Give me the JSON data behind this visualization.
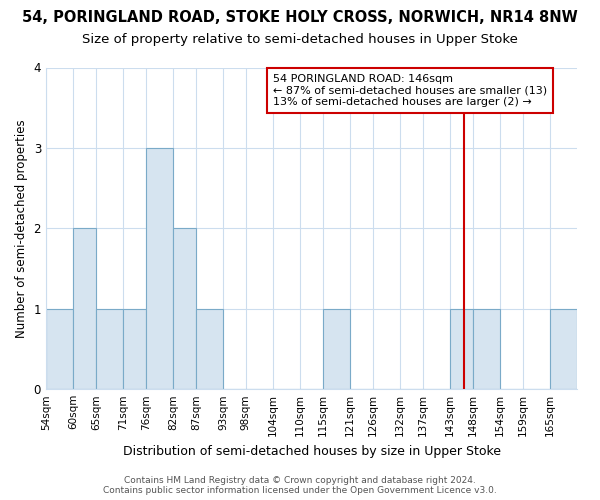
{
  "title1": "54, PORINGLAND ROAD, STOKE HOLY CROSS, NORWICH, NR14 8NW",
  "title2": "Size of property relative to semi-detached houses in Upper Stoke",
  "xlabel": "Distribution of semi-detached houses by size in Upper Stoke",
  "ylabel": "Number of semi-detached properties",
  "bins": [
    "54sqm",
    "60sqm",
    "65sqm",
    "71sqm",
    "76sqm",
    "82sqm",
    "87sqm",
    "93sqm",
    "98sqm",
    "104sqm",
    "110sqm",
    "115sqm",
    "121sqm",
    "126sqm",
    "132sqm",
    "137sqm",
    "143sqm",
    "148sqm",
    "154sqm",
    "159sqm",
    "165sqm"
  ],
  "bin_edges": [
    54,
    60,
    65,
    71,
    76,
    82,
    87,
    93,
    98,
    104,
    110,
    115,
    121,
    126,
    132,
    137,
    143,
    148,
    154,
    159,
    165,
    171
  ],
  "heights": [
    1,
    2,
    1,
    1,
    3,
    2,
    1,
    0,
    0,
    0,
    0,
    1,
    0,
    0,
    0,
    0,
    1,
    1,
    0,
    0,
    1
  ],
  "bar_color": "#d6e4f0",
  "bar_edge_color": "#7aaac8",
  "vline_x": 146,
  "vline_color": "#cc0000",
  "annotation_title": "54 PORINGLAND ROAD: 146sqm",
  "annotation_line1": "← 87% of semi-detached houses are smaller (13)",
  "annotation_line2": "13% of semi-detached houses are larger (2) →",
  "annotation_box_color": "#ffffff",
  "annotation_border_color": "#cc0000",
  "ylim": [
    0,
    4
  ],
  "yticks": [
    0,
    1,
    2,
    3,
    4
  ],
  "footer1": "Contains HM Land Registry data © Crown copyright and database right 2024.",
  "footer2": "Contains public sector information licensed under the Open Government Licence v3.0.",
  "bg_color": "#ffffff",
  "plot_bg_color": "#ffffff",
  "grid_color": "#ccddee",
  "title1_fontsize": 10.5,
  "title2_fontsize": 9.5,
  "xlabel_fontsize": 9,
  "ylabel_fontsize": 8.5,
  "tick_fontsize": 7.5,
  "annotation_fontsize": 8,
  "footer_fontsize": 6.5
}
